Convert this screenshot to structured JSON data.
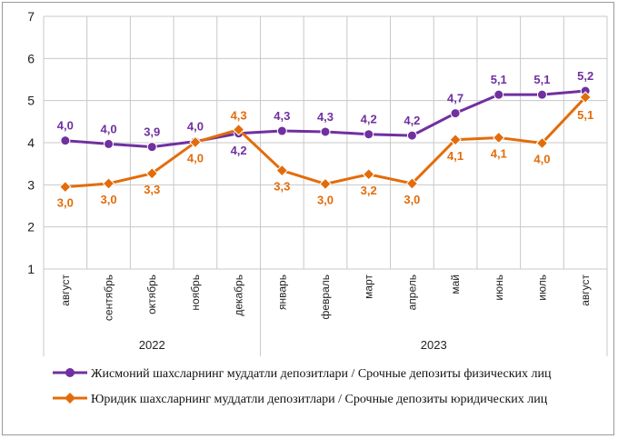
{
  "chart_data": {
    "type": "line",
    "categories": [
      "август",
      "сентябрь",
      "октябрь",
      "ноябрь",
      "декабрь",
      "январь",
      "февраль",
      "март",
      "апрель",
      "май",
      "июнь",
      "июль",
      "август"
    ],
    "year_groups": [
      {
        "label": "2022",
        "start": 0,
        "end": 4
      },
      {
        "label": "2023",
        "start": 5,
        "end": 12
      }
    ],
    "ylim": [
      1,
      7
    ],
    "yticks": [
      "1",
      "2",
      "3",
      "4",
      "5",
      "6",
      "7"
    ],
    "grid": true,
    "legend_position": "bottom",
    "series": [
      {
        "name": "Жисмоний шахсларнинг муддатли депозитлари / Срочные депозиты физических лиц",
        "color": "#7030a0",
        "values": [
          4.05,
          3.97,
          3.9,
          4.03,
          4.22,
          4.28,
          4.26,
          4.2,
          4.17,
          4.7,
          5.14,
          5.14,
          5.23
        ],
        "labels": [
          "4,0",
          "4,0",
          "3,9",
          "4,0",
          "4,2",
          "4,3",
          "4,3",
          "4,2",
          "4,2",
          "4,7",
          "5,1",
          "5,1",
          "5,2"
        ]
      },
      {
        "name": "Юридик шахсларнинг муддатли депозитлари / Срочные депозиты юридических лиц",
        "color": "#e36c0a",
        "values": [
          2.95,
          3.03,
          3.27,
          4.01,
          4.31,
          3.34,
          3.02,
          3.25,
          3.03,
          4.07,
          4.12,
          3.99,
          5.08
        ],
        "labels": [
          "3,0",
          "3,0",
          "3,3",
          "4,0",
          "4,3",
          "3,3",
          "3,0",
          "3,2",
          "3,0",
          "4,1",
          "4,1",
          "4,0",
          "5,1"
        ]
      }
    ]
  }
}
